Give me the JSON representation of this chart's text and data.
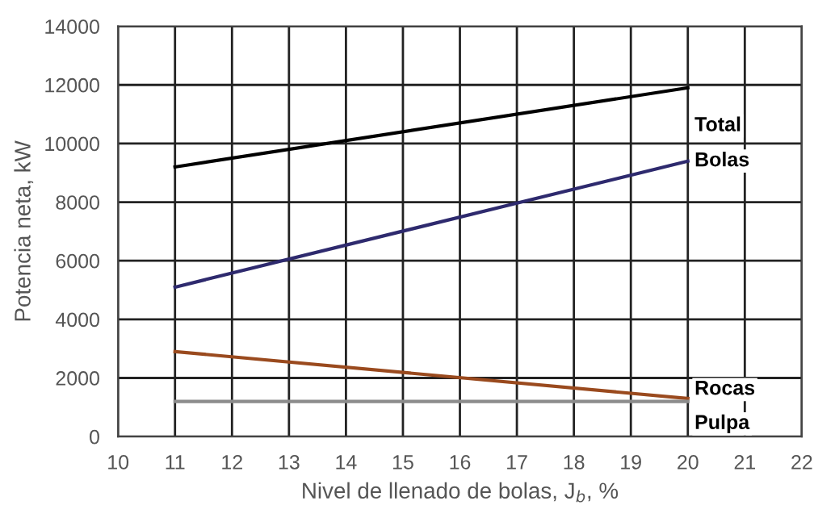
{
  "chart_data": {
    "type": "line",
    "xlabel": "Nivel de llenado de bolas, J$_{b}$, %",
    "ylabel": "Potencia neta, kW",
    "x": [
      11,
      20
    ],
    "series": [
      {
        "name": "Total",
        "color": "#000000",
        "values": [
          9200,
          11900
        ]
      },
      {
        "name": "Bolas",
        "color": "#2e2a6e",
        "values": [
          5100,
          9400
        ]
      },
      {
        "name": "Rocas",
        "color": "#9a4a1e",
        "values": [
          2900,
          1300
        ]
      },
      {
        "name": "Pulpa",
        "color": "#8c8c8c",
        "values": [
          1200,
          1200
        ]
      }
    ],
    "xlim": [
      10,
      22
    ],
    "xticks": [
      10,
      11,
      12,
      13,
      14,
      15,
      16,
      17,
      18,
      19,
      20,
      21,
      22
    ],
    "ylim": [
      0,
      14000
    ],
    "yticks": [
      0,
      2000,
      4000,
      6000,
      8000,
      10000,
      12000,
      14000
    ],
    "grid": true,
    "legend": false,
    "marker": "none",
    "line_style": "solid"
  }
}
